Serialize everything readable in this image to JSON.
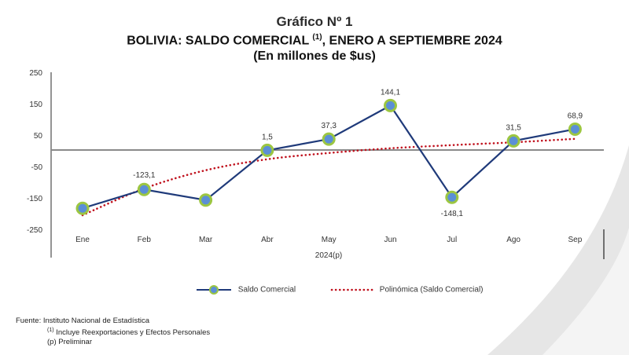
{
  "header": {
    "chart_number": "Gráfico Nº 1",
    "title_main": "BOLIVIA: SALDO COMERCIAL",
    "title_sup": "(1)",
    "title_rest": ", ENERO A SEPTIEMBRE 2024",
    "units": "(En millones de $us)"
  },
  "chart_data": {
    "type": "line",
    "categories": [
      "Ene",
      "Feb",
      "Mar",
      "Abr",
      "May",
      "Jun",
      "Jul",
      "Ago",
      "Sep"
    ],
    "xlabel": "2024(p)",
    "ylim": [
      -250,
      250
    ],
    "yticks": [
      "250",
      "150",
      "50",
      "-50",
      "-150",
      "-250"
    ],
    "ytick_values": [
      250,
      150,
      50,
      -50,
      -150,
      -250
    ],
    "grid": false,
    "zero_line": true,
    "legend_position": "bottom",
    "series": [
      {
        "name": "Saldo Comercial",
        "values": [
          -183,
          -123.1,
          -157,
          1.5,
          37.3,
          144.1,
          -148.1,
          31.5,
          68.9
        ],
        "data_labels": [
          "",
          "-123,1",
          "",
          "1,5",
          "37,3",
          "144,1",
          "-148,1",
          "31,5",
          "68,9"
        ],
        "color": "#1f3a7a",
        "marker_fill": "#5b8fd6",
        "marker_ring": "#9cc641"
      },
      {
        "name": "Polinómica (Saldo Comercial)",
        "values": [
          -205,
          -120,
          -62,
          -27,
          -7,
          8,
          18,
          27,
          38
        ],
        "color": "#c0121e",
        "style": "dotted"
      }
    ]
  },
  "legend": {
    "items": [
      {
        "label": "Saldo Comercial"
      },
      {
        "label": "Polinómica (Saldo Comercial)"
      }
    ]
  },
  "footer": {
    "source": "Fuente: Instituto Nacional de Estadística",
    "note1_sup": "(1)",
    "note1": " Incluye Reexportaciones y Efectos Personales",
    "note2": "(p) Preliminar"
  },
  "colors": {
    "axis": "#707070",
    "decor": "#d4d4d4"
  }
}
